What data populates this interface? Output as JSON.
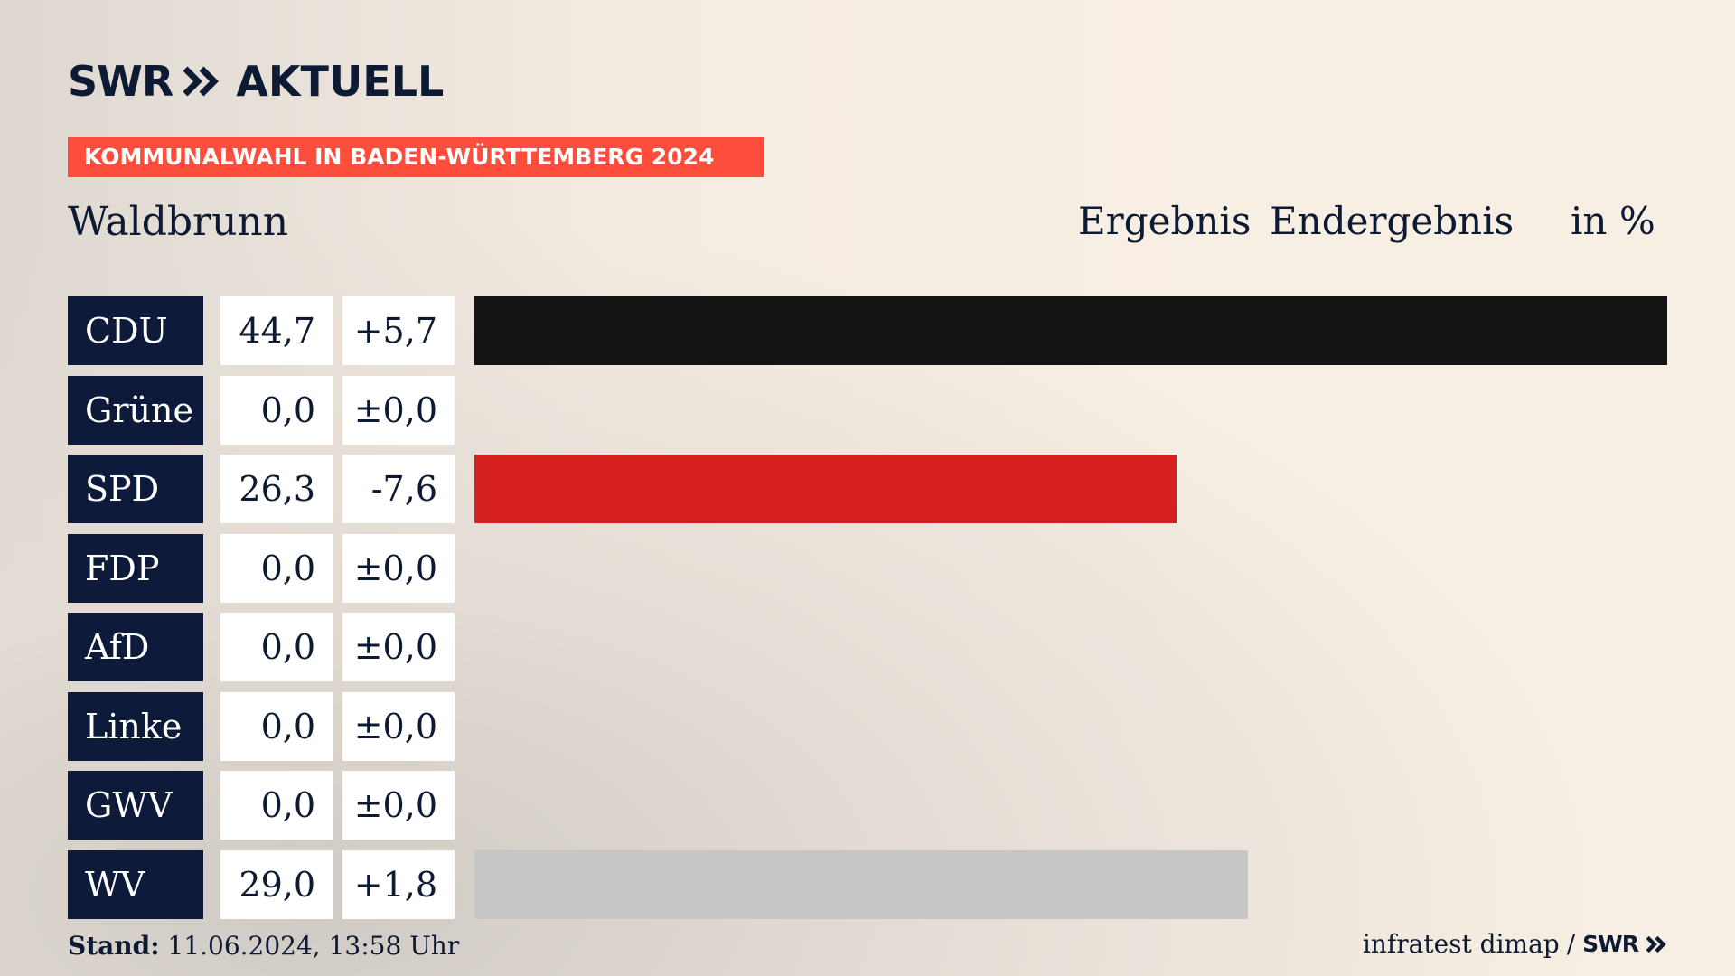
{
  "brand": {
    "swr": "SWR",
    "aktuell": "AKTUELL"
  },
  "banner": "KOMMUNALWAHL IN BADEN-WÜRTTEMBERG 2024",
  "place": "Waldbrunn",
  "header": {
    "result": "Ergebnis",
    "status": "Endergebnis",
    "unit": "in %"
  },
  "colors": {
    "brand_navy": "#0d1a3a",
    "banner_red": "#fd4d3c"
  },
  "chart_data": {
    "type": "bar",
    "orientation": "horizontal",
    "categories": [
      "CDU",
      "Grüne",
      "SPD",
      "FDP",
      "AfD",
      "Linke",
      "GWV",
      "WV"
    ],
    "values": [
      44.7,
      0.0,
      26.3,
      0.0,
      0.0,
      0.0,
      0.0,
      29.0
    ],
    "value_labels": [
      "44,7",
      "0,0",
      "26,3",
      "0,0",
      "0,0",
      "0,0",
      "0,0",
      "29,0"
    ],
    "diff_labels": [
      "+5,7",
      "±0,0",
      "-7,6",
      "±0,0",
      "±0,0",
      "±0,0",
      "±0,0",
      "+1,8"
    ],
    "bar_colors": [
      "#141414",
      "#46962b",
      "#d6201f",
      "#ffd600",
      "#0b9fe0",
      "#be3075",
      "#8a8a8a",
      "#c6c6c6"
    ],
    "xlim": [
      0,
      44.7
    ]
  },
  "footer": {
    "stand_label": "Stand:",
    "stand_value": "11.06.2024, 13:58 Uhr",
    "source": "infratest dimap",
    "separator": "/",
    "source_logo": "SWR"
  }
}
